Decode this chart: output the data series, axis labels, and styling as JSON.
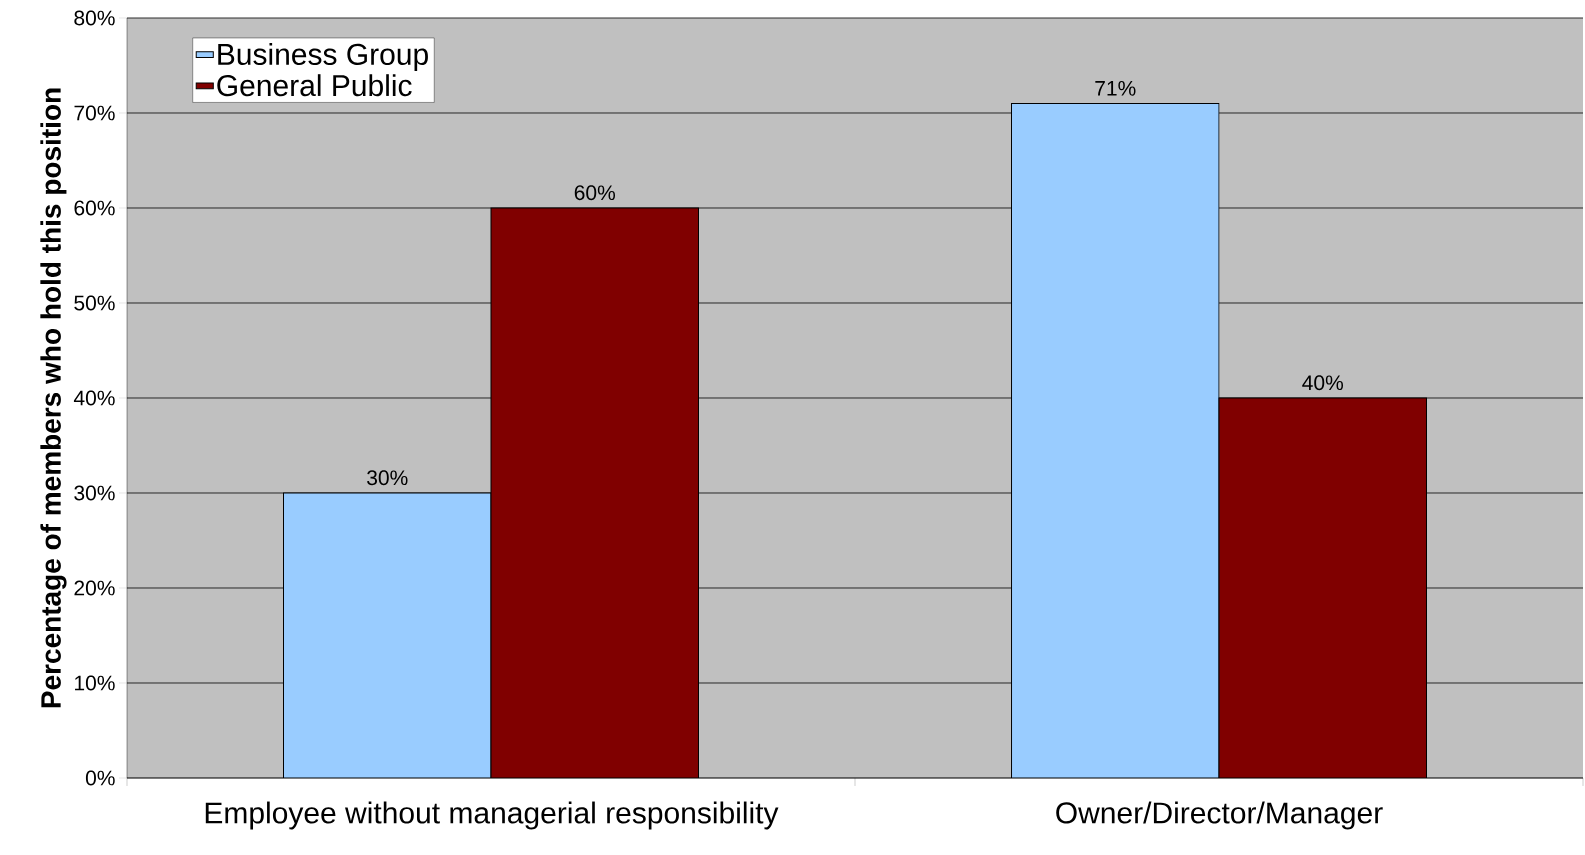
{
  "chart_data": {
    "type": "bar",
    "ylabel": "Percentage of members who hold this position",
    "categories": [
      "Employee without managerial responsibility",
      "Owner/Director/Manager"
    ],
    "series": [
      {
        "name": "Business Group",
        "color": "#99ccff",
        "values": [
          30,
          71
        ],
        "value_labels": [
          "30%",
          "71%"
        ]
      },
      {
        "name": "General Public",
        "color": "#800000",
        "values": [
          60,
          40
        ],
        "value_labels": [
          "60%",
          "40%"
        ]
      }
    ],
    "ylim": [
      0,
      80
    ],
    "yticks": [
      {
        "value": 0,
        "label": "0%"
      },
      {
        "value": 10,
        "label": "10%"
      },
      {
        "value": 20,
        "label": "20%"
      },
      {
        "value": 30,
        "label": "30%"
      },
      {
        "value": 40,
        "label": "40%"
      },
      {
        "value": 50,
        "label": "50%"
      },
      {
        "value": 60,
        "label": "60%"
      },
      {
        "value": 70,
        "label": "70%"
      },
      {
        "value": 80,
        "label": "80%"
      }
    ],
    "grid": "y",
    "legend": "top left"
  }
}
